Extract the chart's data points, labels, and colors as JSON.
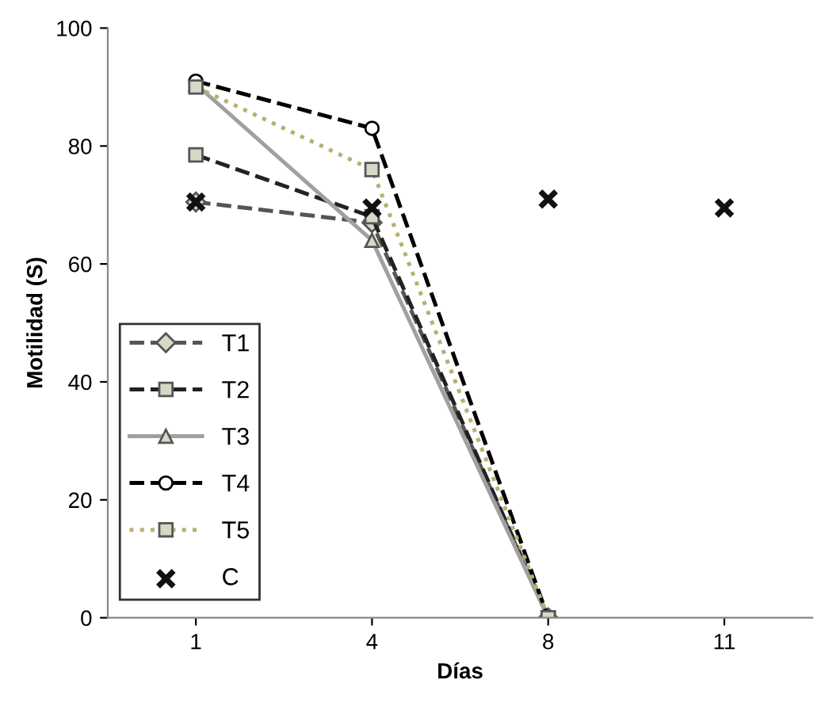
{
  "chart_data": {
    "type": "line",
    "xlabel": "Días",
    "ylabel": "Motilidad (S)",
    "categories": [
      "1",
      "4",
      "8",
      "11"
    ],
    "series": [
      {
        "name": "T1",
        "color": "#555555",
        "line_style": "dashed",
        "marker": "diamond",
        "values": [
          70.5,
          67,
          0,
          null
        ]
      },
      {
        "name": "T2",
        "color": "#222222",
        "line_style": "dashed",
        "marker": "square",
        "values": [
          78.5,
          68,
          0,
          null
        ]
      },
      {
        "name": "T3",
        "color": "#a0a0a0",
        "line_style": "solid",
        "marker": "triangle",
        "values": [
          90.5,
          64,
          0,
          null
        ]
      },
      {
        "name": "T4",
        "color": "#000000",
        "line_style": "dashed",
        "marker": "circle",
        "values": [
          91,
          83,
          0,
          null
        ]
      },
      {
        "name": "T5",
        "color": "#b8b070",
        "line_style": "dotted",
        "marker": "square",
        "values": [
          90,
          76,
          0,
          null
        ]
      },
      {
        "name": "C",
        "type": "scatter",
        "color": "#111111",
        "marker": "cross",
        "values": [
          70.5,
          69.5,
          71,
          69.5
        ]
      }
    ],
    "ylim": [
      0,
      100
    ],
    "yticks": [
      0,
      20,
      40,
      60,
      80,
      100
    ],
    "grid": false,
    "legend": "left"
  }
}
